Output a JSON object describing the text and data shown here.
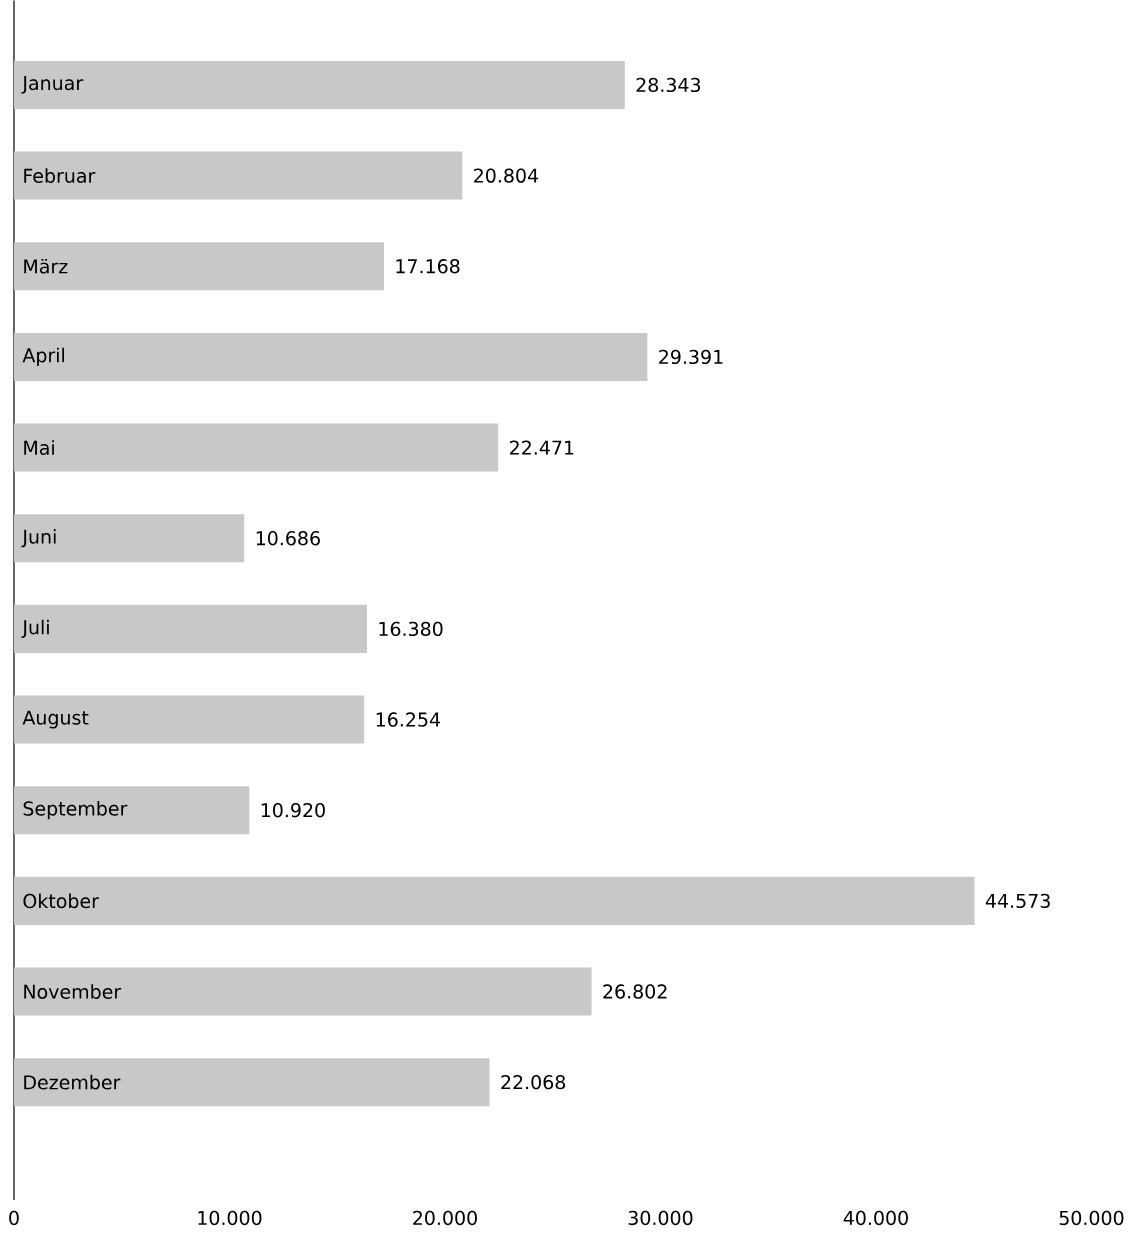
{
  "chart_data": {
    "type": "bar",
    "orientation": "horizontal",
    "categories": [
      "Januar",
      "Februar",
      "März",
      "April",
      "Mai",
      "Juni",
      "Juli",
      "August",
      "September",
      "Oktober",
      "November",
      "Dezember"
    ],
    "values": [
      28343,
      20804,
      17168,
      29391,
      22471,
      10686,
      16380,
      16254,
      10920,
      44573,
      26802,
      22068
    ],
    "value_labels": [
      "28.343",
      "20.804",
      "17.168",
      "29.391",
      "22.471",
      "10.686",
      "16.380",
      "16.254",
      "10.920",
      "44.573",
      "26.802",
      "22.068"
    ],
    "color": "#c8c8c8",
    "xlim": [
      0,
      50000
    ],
    "xticks": [
      0,
      {
        "value": 10000,
        "label": "10.000"
      },
      {
        "value": 20000,
        "label": "20.000"
      },
      {
        "value": 30000,
        "label": "30.000"
      },
      {
        "value": 40000,
        "label": "40.000"
      },
      {
        "value": 50000,
        "label": "50.000"
      }
    ]
  }
}
